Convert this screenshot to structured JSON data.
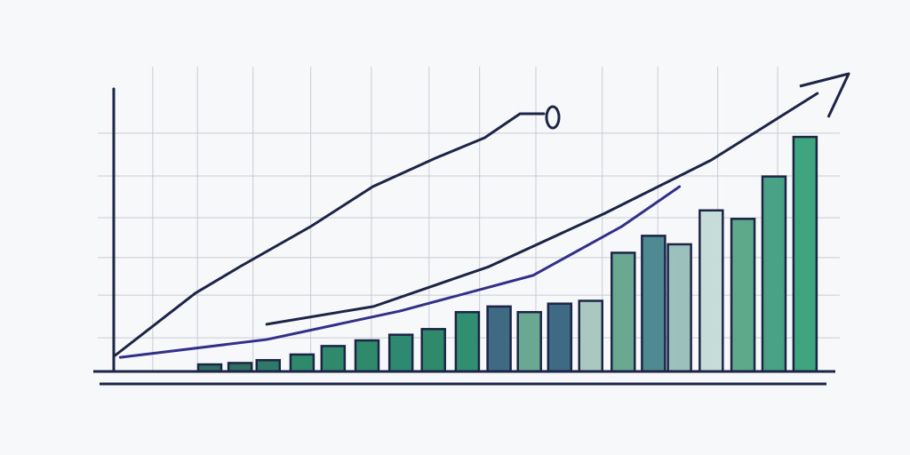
{
  "chart_data": [
    {
      "type": "bar",
      "x": [
        13.3,
        17.5,
        21.4,
        26.1,
        30.4,
        35.1,
        39.8,
        44.3,
        49,
        53.4,
        57.6,
        61.8,
        66.1,
        70.6,
        74.8,
        78.4,
        82.8,
        87.2,
        91.5,
        95.8
      ],
      "values": [
        2.5,
        3,
        4,
        6,
        9,
        11,
        13,
        15,
        21,
        23,
        21,
        24,
        25,
        42,
        48,
        45,
        57,
        54,
        69,
        83
      ],
      "colors": [
        "#2f6f62",
        "#2f6f62",
        "#2e7a66",
        "#2f8a6c",
        "#2f8a6c",
        "#2f8a6c",
        "#2e8a6e",
        "#2f8a6c",
        "#2f8f6e",
        "#3e6a84",
        "#6aa892",
        "#3e6a84",
        "#a8c8c0",
        "#6aa892",
        "#4f8a92",
        "#9cc0bb",
        "#c6dcd8",
        "#5ea88c",
        "#4aa286",
        "#3fa57e"
      ],
      "xlim": [
        0,
        100
      ],
      "ylim": [
        0,
        100
      ],
      "xticks": [
        5.4,
        11.6,
        19.3,
        27.3,
        35.7,
        43.7,
        50.7,
        58.5,
        67.7,
        75.4,
        83.7,
        92
      ],
      "yticks": [
        11.9,
        27,
        40.3,
        54.4,
        69.2,
        84.3
      ],
      "grid": true
    },
    {
      "type": "line",
      "xlim": [
        0,
        100
      ],
      "ylim": [
        0,
        100
      ],
      "series": [
        {
          "color": "#1d2547",
          "x": [
            0.2,
            11.3,
            17.5,
            27.3,
            35.9,
            44.6,
            51.4,
            56.3,
            59.6
          ],
          "values": [
            5.7,
            27.7,
            37.1,
            51.3,
            65.4,
            75.5,
            82.7,
            91.2,
            91.2
          ]
        },
        {
          "color": "#1d2547",
          "x": [
            21.2,
            36,
            52,
            68,
            82.8,
            97.5
          ],
          "values": [
            16.7,
            23,
            37.1,
            55.9,
            74.8,
            98.4
          ]
        },
        {
          "color": "#33308a",
          "x": [
            0.9,
            21.2,
            39.7,
            58.1,
            70.4,
            78.4
          ],
          "values": [
            5,
            11.3,
            21.4,
            34,
            51.3,
            65.4
          ]
        }
      ]
    }
  ]
}
